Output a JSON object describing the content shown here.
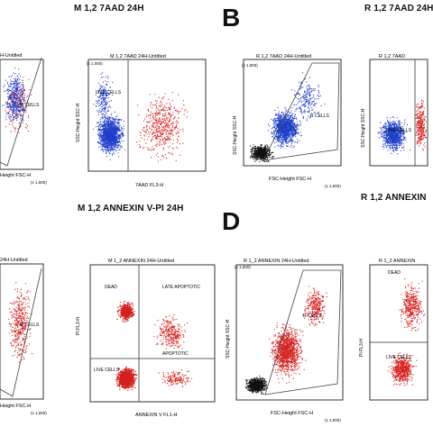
{
  "headings": {
    "m_7aad": "M 1,2 7AAD 24H",
    "r_7aad": "R 1,2 7AAD 24H",
    "m_annexin": "M 1,2 ANNEXIN V-PI 24H",
    "r_annexin": "R 1,2 ANNEXIN"
  },
  "panel_letters": {
    "b": "B",
    "d": "D"
  },
  "plots": {
    "p1": {
      "title": "H-Untitled",
      "gate": "M CELLS",
      "xlabel": "Height FSC-H",
      "xscale": "(x 1,000)"
    },
    "p2": {
      "title": "M 1,2 7AAD 24H-Untitled",
      "gate": "LIVE CELLS",
      "xlabel": "7AAD FL3-H",
      "ylabel": "SSC-Height SSC-H",
      "yscale": "(x 1,000)"
    },
    "p3": {
      "title": "R 1,2 7AAD 24H-Untitled",
      "gate": "R CELLS",
      "xlabel": "FSC-Height FSC-H",
      "ylabel": "SSC-Height SSC-H",
      "xscale": "(x 1,000)",
      "yscale": "(x 1,000)"
    },
    "p4": {
      "title": "R 1,2 7AAD",
      "gate": "LIVE CELLS",
      "ylabel": "SSC-Height SSC-H"
    },
    "p5": {
      "title": "24H-Untitled",
      "gate": "M CELLS",
      "xlabel": "Height FSC-H",
      "xscale": "(x 1,000)"
    },
    "p6": {
      "title": "M 1_2 ANNEXIN 24H-Untitled",
      "ylabel": "PI FL3-H",
      "xlabel": "ANNEXIN V FL1-H",
      "dead": "DEAD",
      "late": "LATE APOPTOTIC",
      "live": "LIVE CELLS",
      "apoptotic": "APOPTOTIC"
    },
    "p7": {
      "title": "R 1_2 ANNEXIN 24H-Untitled",
      "gate": "R CELLS",
      "xlabel": "FSC-Height FSC-H",
      "ylabel": "SSC-Height SSC-H",
      "xscale": "(x 1,000)",
      "yscale": "(x 1,000)"
    },
    "p8": {
      "title": "R 1_2 ANNEXIN",
      "dead": "DEAD",
      "live": "LIVE CELLS",
      "ylabel": "PI FL3-H"
    }
  },
  "colors": {
    "blue": "#1f3fc8",
    "red": "#d42020",
    "black": "#111111",
    "frame": "#333333"
  }
}
